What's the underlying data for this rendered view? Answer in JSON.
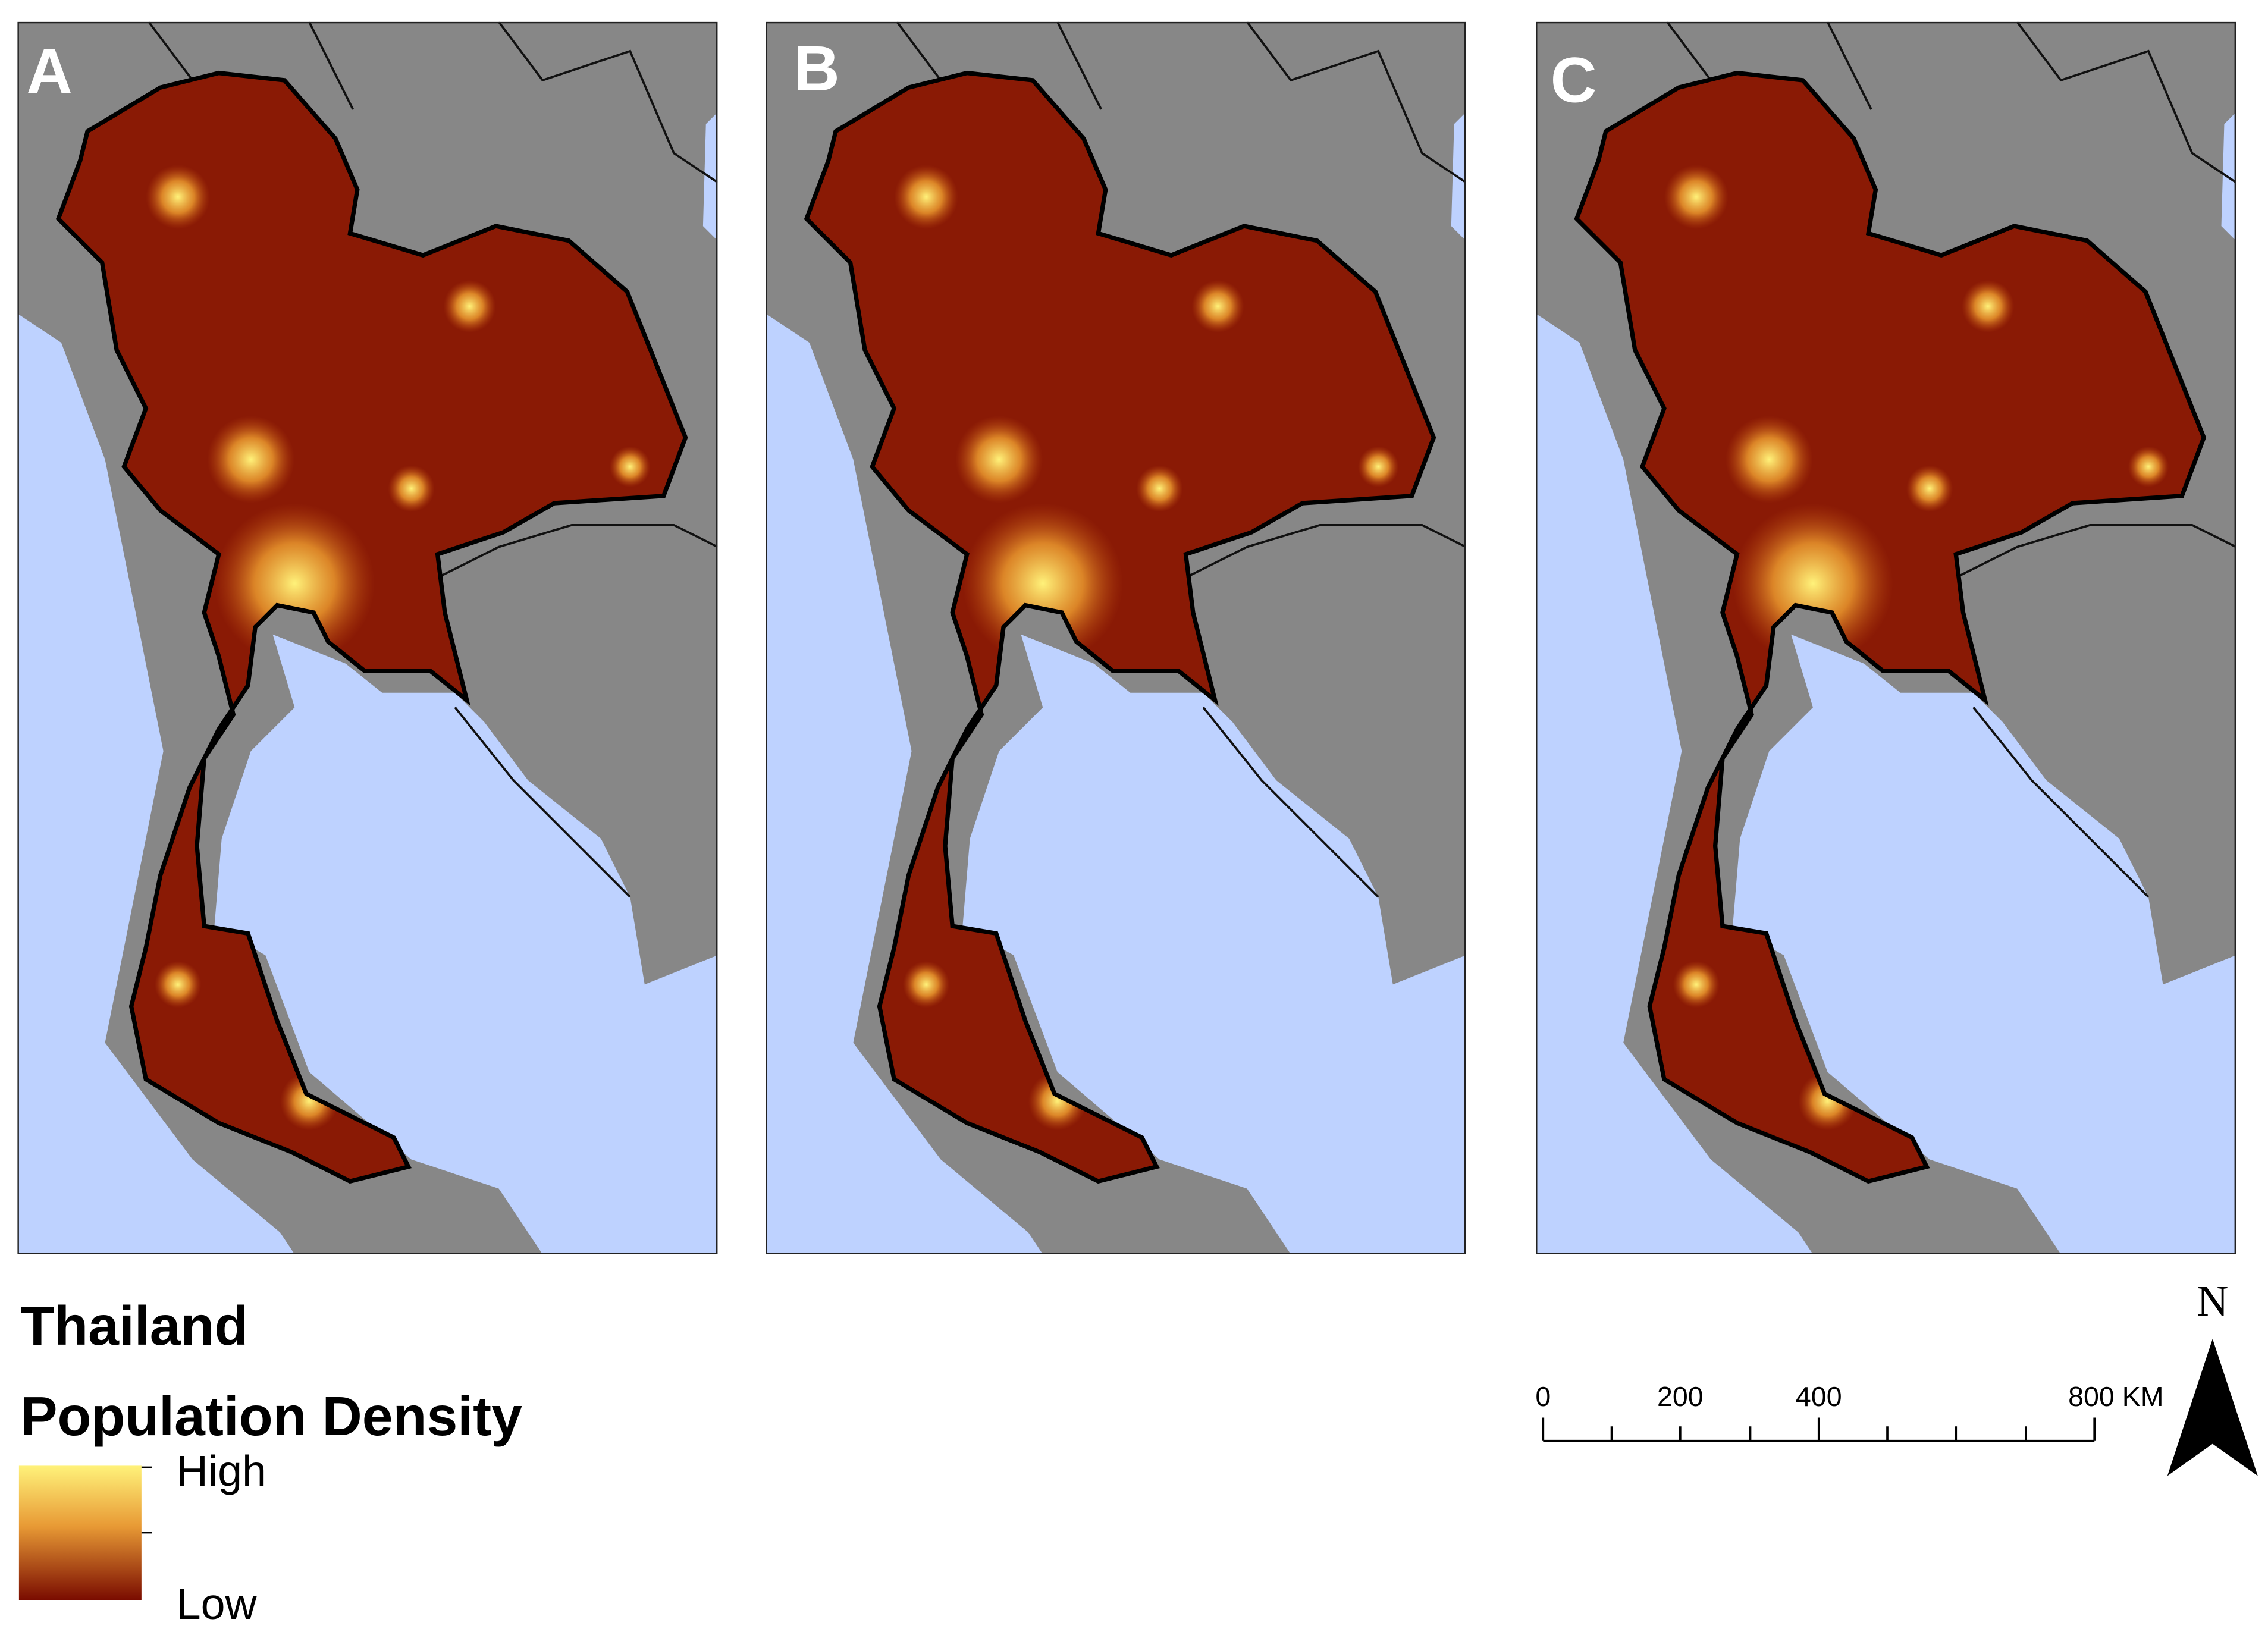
{
  "panels": [
    {
      "label": "A"
    },
    {
      "label": "B"
    },
    {
      "label": "C"
    }
  ],
  "legend": {
    "title": "Thailand",
    "subtitle": "Population Density",
    "high": "High",
    "low": "Low"
  },
  "scale_bar": {
    "labels": [
      "0",
      "200",
      "400",
      "800 KM"
    ]
  },
  "north_arrow": {
    "label": "N"
  }
}
